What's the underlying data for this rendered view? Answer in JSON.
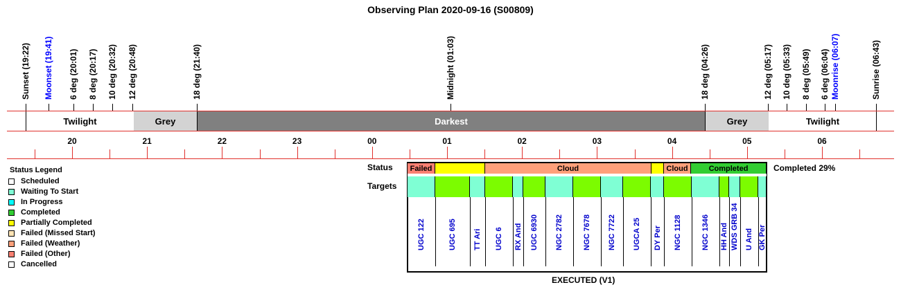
{
  "title": "Observing Plan 2020-09-16 (S00809)",
  "events": [
    {
      "label": "Sunset (19:22)",
      "color": "#000000"
    },
    {
      "label": "Moonset (19:41)",
      "color": "#0000ff"
    },
    {
      "label": "6 deg (20:01)",
      "color": "#000000"
    },
    {
      "label": "8 deg (20:17)",
      "color": "#000000"
    },
    {
      "label": "10 deg (20:32)",
      "color": "#000000"
    },
    {
      "label": "12 deg (20:48)",
      "color": "#000000"
    },
    {
      "label": "18 deg (21:40)",
      "color": "#000000"
    },
    {
      "label": "Midnight (01:03)",
      "color": "#000000"
    },
    {
      "label": "18 deg (04:26)",
      "color": "#000000"
    },
    {
      "label": "12 deg (05:17)",
      "color": "#000000"
    },
    {
      "label": "10 deg (05:33)",
      "color": "#000000"
    },
    {
      "label": "8 deg (05:49)",
      "color": "#000000"
    },
    {
      "label": "6 deg (06:04)",
      "color": "#000000"
    },
    {
      "label": "Moonrise (06:07)",
      "color": "#0000ff"
    },
    {
      "label": "Sunrise (06:43)",
      "color": "#000000"
    }
  ],
  "bands": [
    {
      "label": "Twilight",
      "color": "#ffffff"
    },
    {
      "label": "Grey",
      "color": "#d3d3d3"
    },
    {
      "label": "Darkest",
      "color": "#808080",
      "text_color": "#ffffff"
    },
    {
      "label": "Grey",
      "color": "#d3d3d3"
    },
    {
      "label": "Twilight",
      "color": "#ffffff"
    }
  ],
  "hours": [
    "20",
    "21",
    "22",
    "23",
    "00",
    "01",
    "02",
    "03",
    "04",
    "05",
    "06"
  ],
  "legend": {
    "title": "Status Legend",
    "items": [
      {
        "label": "Scheduled",
        "color": "#ffffff"
      },
      {
        "label": "Waiting To Start",
        "color": "#7fffd4"
      },
      {
        "label": "In Progress",
        "color": "#00ffff"
      },
      {
        "label": "Completed",
        "color": "#32cd32"
      },
      {
        "label": "Partially Completed",
        "color": "#ffff00"
      },
      {
        "label": "Failed (Missed Start)",
        "color": "#ffe4b5"
      },
      {
        "label": "Failed (Weather)",
        "color": "#ffa07a"
      },
      {
        "label": "Failed (Other)",
        "color": "#fa8072"
      },
      {
        "label": "Cancelled",
        "color": "#ffffff"
      }
    ]
  },
  "status_label": "Status",
  "targets_label": "Targets",
  "status_segments": [
    {
      "label": "Failed",
      "color": "#fa8072"
    },
    {
      "label": "",
      "color": "#ffff00"
    },
    {
      "label": "Cloud",
      "color": "#ffa07a"
    },
    {
      "label": "",
      "color": "#ffff00"
    },
    {
      "label": "Cloud",
      "color": "#ffa07a"
    },
    {
      "label": "Completed",
      "color": "#32cd32"
    }
  ],
  "completed_text": "Completed 29%",
  "targets": [
    {
      "name": "UGC 122",
      "color": "#7fffd4"
    },
    {
      "name": "UGC 695",
      "color": "#7cfc00"
    },
    {
      "name": "TT Ari",
      "color": "#7fffd4"
    },
    {
      "name": "UGC 6",
      "color": "#7cfc00"
    },
    {
      "name": "RX And",
      "color": "#7fffd4"
    },
    {
      "name": "UGC 6930",
      "color": "#7cfc00"
    },
    {
      "name": "NGC 2782",
      "color": "#7fffd4"
    },
    {
      "name": "NGC 7678",
      "color": "#7cfc00"
    },
    {
      "name": "NGC 7722",
      "color": "#7fffd4"
    },
    {
      "name": "UGCA 25",
      "color": "#7cfc00"
    },
    {
      "name": "DY Per",
      "color": "#7fffd4"
    },
    {
      "name": "NGC 1128",
      "color": "#7cfc00"
    },
    {
      "name": "NGC 1346",
      "color": "#7fffd4"
    },
    {
      "name": "HH And",
      "color": "#7cfc00"
    },
    {
      "name": "WDS GRB 34",
      "color": "#7fffd4"
    },
    {
      "name": "U And",
      "color": "#7cfc00"
    },
    {
      "name": "GK Per",
      "color": "#7fffd4"
    }
  ],
  "footer": "EXECUTED (V1)"
}
